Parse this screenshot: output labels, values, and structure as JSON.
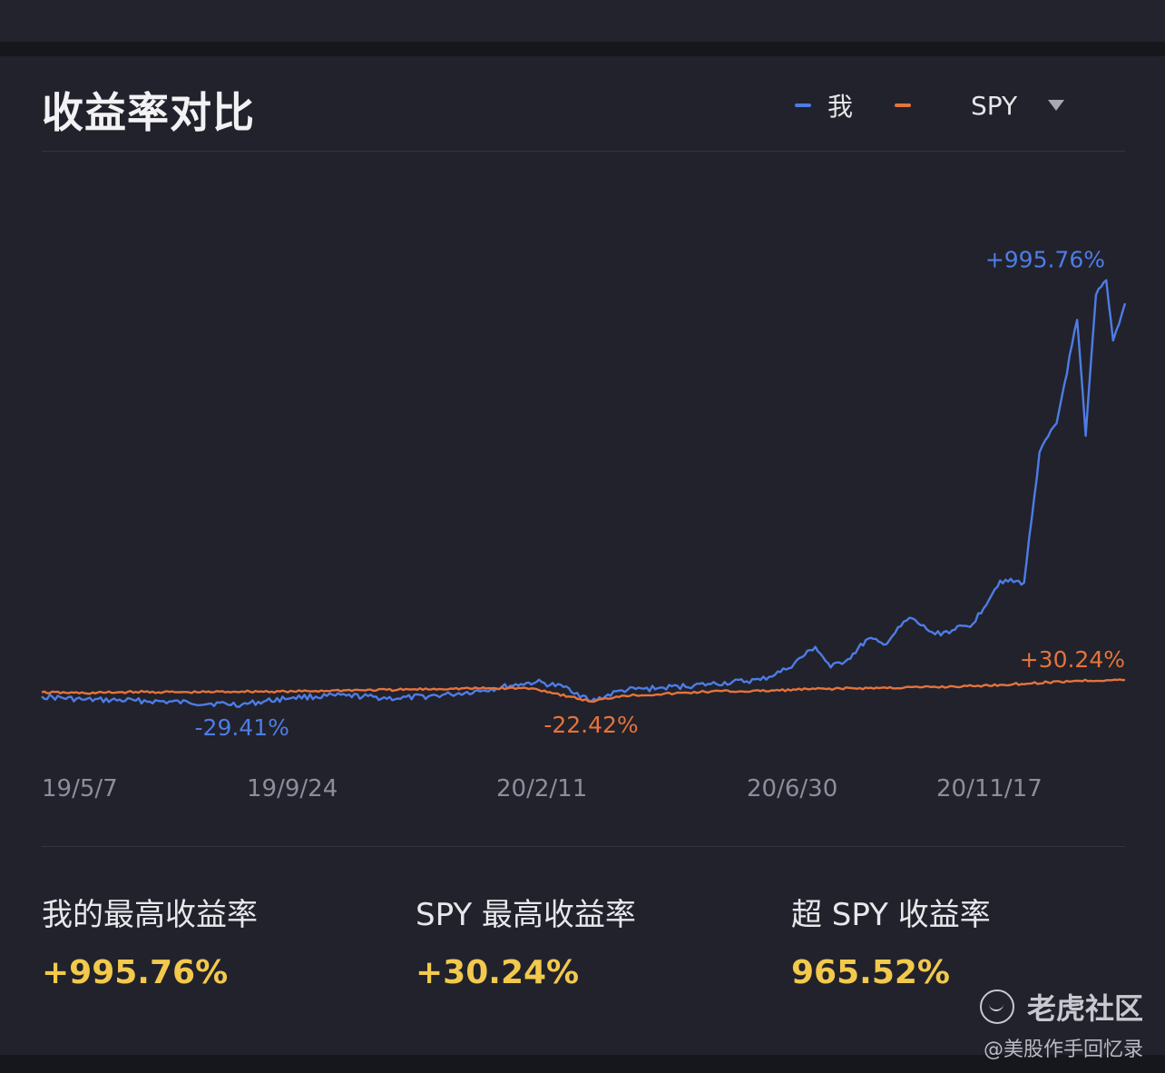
{
  "title": "收益率对比",
  "legend": {
    "series_me": "我",
    "series_spy": "SPY"
  },
  "colors": {
    "me": "#4e7ce6",
    "spy": "#e6733b",
    "highlight": "#f2c94c"
  },
  "stats": [
    {
      "label": "我的最高收益率",
      "value": "+995.76%"
    },
    {
      "label": "SPY 最高收益率",
      "value": "+30.24%"
    },
    {
      "label": "超 SPY 收益率",
      "value": "965.52%"
    }
  ],
  "watermark": {
    "brand": "老虎社区",
    "author": "@美股作手回忆录"
  },
  "chart_data": {
    "type": "line",
    "title": "收益率对比",
    "xlabel": "",
    "ylabel": "",
    "x_tick_labels": [
      "19/5/7",
      "19/9/24",
      "20/2/11",
      "20/6/30",
      "20/11/17"
    ],
    "x_range": [
      "2019-05-07",
      "2021-01-29"
    ],
    "ylim": [
      -60,
      1300
    ],
    "grid": false,
    "legend_position": "top-right",
    "annotations": [
      {
        "text": "+995.76%",
        "series": "我",
        "type": "max"
      },
      {
        "text": "-29.41%",
        "series": "我",
        "type": "min"
      },
      {
        "text": "+30.24%",
        "series": "SPY",
        "type": "max"
      },
      {
        "text": "-22.42%",
        "series": "SPY",
        "type": "min"
      }
    ],
    "series": [
      {
        "name": "我",
        "color": "#4e7ce6",
        "x": [
          "2019-05-07",
          "2019-06-01",
          "2019-07-01",
          "2019-08-01",
          "2019-09-01",
          "2019-10-01",
          "2019-11-01",
          "2019-12-01",
          "2020-01-01",
          "2020-01-20",
          "2020-02-11",
          "2020-02-20",
          "2020-03-10",
          "2020-03-23",
          "2020-04-10",
          "2020-05-01",
          "2020-06-01",
          "2020-06-30",
          "2020-07-15",
          "2020-08-01",
          "2020-08-10",
          "2020-08-20",
          "2020-09-01",
          "2020-09-10",
          "2020-09-25",
          "2020-10-10",
          "2020-10-20",
          "2020-11-01",
          "2020-11-17",
          "2020-12-01",
          "2020-12-10",
          "2020-12-20",
          "2021-01-01",
          "2021-01-06",
          "2021-01-12",
          "2021-01-18",
          "2021-01-22",
          "2021-01-29"
        ],
        "y": [
          -10,
          -18,
          -20,
          -25,
          -29.41,
          -12,
          -8,
          -15,
          -5,
          5,
          20,
          25,
          10,
          -22,
          5,
          10,
          20,
          30,
          55,
          110,
          60,
          80,
          130,
          115,
          180,
          140,
          150,
          165,
          270,
          265,
          580,
          650,
          900,
          620,
          960,
          995.76,
          850,
          940
        ]
      },
      {
        "name": "SPY",
        "color": "#e6733b",
        "x": [
          "2019-05-07",
          "2019-06-01",
          "2019-07-01",
          "2019-08-01",
          "2019-09-01",
          "2019-10-01",
          "2019-11-01",
          "2019-12-01",
          "2020-01-01",
          "2020-02-11",
          "2020-02-20",
          "2020-03-10",
          "2020-03-23",
          "2020-04-10",
          "2020-05-01",
          "2020-06-01",
          "2020-06-30",
          "2020-08-01",
          "2020-09-01",
          "2020-10-01",
          "2020-11-01",
          "2020-11-17",
          "2020-12-15",
          "2021-01-01",
          "2021-01-29"
        ],
        "y": [
          0,
          -2,
          1,
          0,
          2,
          2,
          5,
          6,
          9,
          10,
          8,
          -10,
          -22.42,
          -8,
          -5,
          2,
          3,
          8,
          10,
          12,
          15,
          18,
          24,
          28,
          30.24
        ]
      }
    ]
  }
}
